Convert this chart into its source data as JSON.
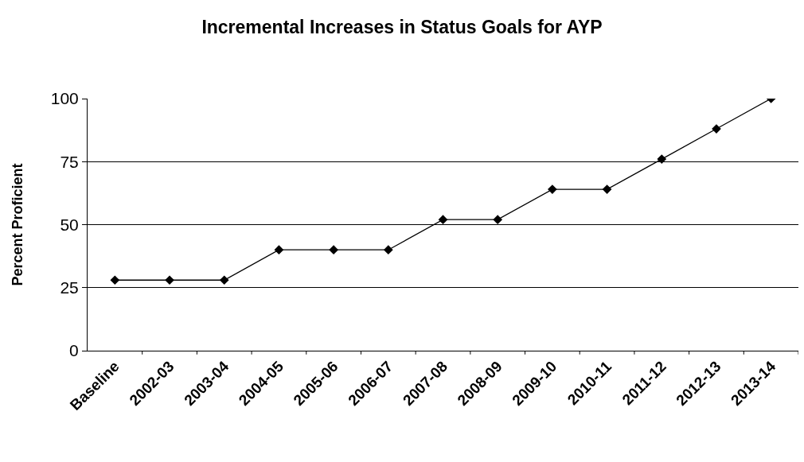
{
  "chart_data": {
    "type": "line",
    "title": "Incremental Increases in Status Goals for AYP",
    "ylabel": "Percent Proficient",
    "categories": [
      "Baseline",
      "2002-03",
      "2003-04",
      "2004-05",
      "2005-06",
      "2006-07",
      "2007-08",
      "2008-09",
      "2009-10",
      "2010-11",
      "2011-12",
      "2012-13",
      "2013-14"
    ],
    "values": [
      28,
      28,
      28,
      40,
      40,
      40,
      52,
      52,
      64,
      64,
      76,
      88,
      100
    ],
    "color": "#000000",
    "marker": "diamond",
    "line_style": "solid",
    "ylim": [
      0,
      100
    ],
    "yticks": [
      0,
      25,
      50,
      75,
      100
    ],
    "grid": "y",
    "legend": false
  }
}
